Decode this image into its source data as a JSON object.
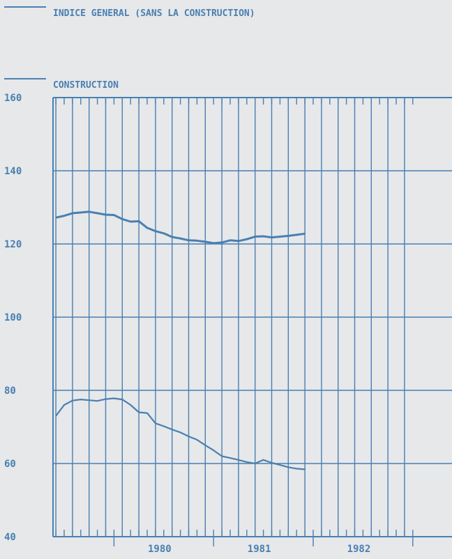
{
  "chart_data": {
    "type": "line",
    "title": "",
    "xlabel": "",
    "ylabel": "",
    "ylim": [
      40,
      160
    ],
    "yticks": [
      40,
      60,
      80,
      100,
      120,
      140,
      160
    ],
    "year_labels": [
      "1980",
      "1981",
      "1982"
    ],
    "grid": true,
    "legend_position": "top-left",
    "colors": {
      "line": "#4a7fb0",
      "background": "#e6e8ea"
    },
    "series": [
      {
        "name": "INDICE GENERAL (SANS LA CONSTRUCTION)",
        "x": [
          "1979-06",
          "1979-07",
          "1979-08",
          "1979-09",
          "1979-10",
          "1979-11",
          "1979-12",
          "1980-01",
          "1980-02",
          "1980-03",
          "1980-04",
          "1980-05",
          "1980-06",
          "1980-07",
          "1980-08",
          "1980-09",
          "1980-10",
          "1980-11",
          "1980-12",
          "1981-01",
          "1981-02",
          "1981-03",
          "1981-04",
          "1981-05",
          "1981-06",
          "1981-07",
          "1981-08",
          "1981-09",
          "1981-10",
          "1981-11",
          "1981-12"
        ],
        "values": [
          127.2,
          127.7,
          128.4,
          128.6,
          128.8,
          128.4,
          128.0,
          127.9,
          126.8,
          126.1,
          126.2,
          124.4,
          123.5,
          122.9,
          121.9,
          121.5,
          121.0,
          120.9,
          120.6,
          120.2,
          120.4,
          121.0,
          120.8,
          121.3,
          122.0,
          122.1,
          121.8,
          122.0,
          122.2,
          122.5,
          122.8
        ]
      },
      {
        "name": "CONSTRUCTION",
        "x": [
          "1979-06",
          "1979-07",
          "1979-08",
          "1979-09",
          "1979-10",
          "1979-11",
          "1979-12",
          "1980-01",
          "1980-02",
          "1980-03",
          "1980-04",
          "1980-05",
          "1980-06",
          "1980-07",
          "1980-08",
          "1980-09",
          "1980-10",
          "1980-11",
          "1980-12",
          "1981-01",
          "1981-02",
          "1981-03",
          "1981-04",
          "1981-05",
          "1981-06",
          "1981-07",
          "1981-08",
          "1981-09",
          "1981-10",
          "1981-11",
          "1981-12"
        ],
        "values": [
          73.0,
          76.0,
          77.2,
          77.5,
          77.3,
          77.1,
          77.6,
          77.8,
          77.5,
          76.0,
          74.0,
          73.8,
          71.0,
          70.2,
          69.3,
          68.5,
          67.4,
          66.5,
          65.0,
          63.6,
          62.0,
          61.5,
          61.0,
          60.4,
          60.0,
          61.0,
          60.2,
          59.6,
          59.0,
          58.6,
          58.4
        ]
      }
    ]
  }
}
